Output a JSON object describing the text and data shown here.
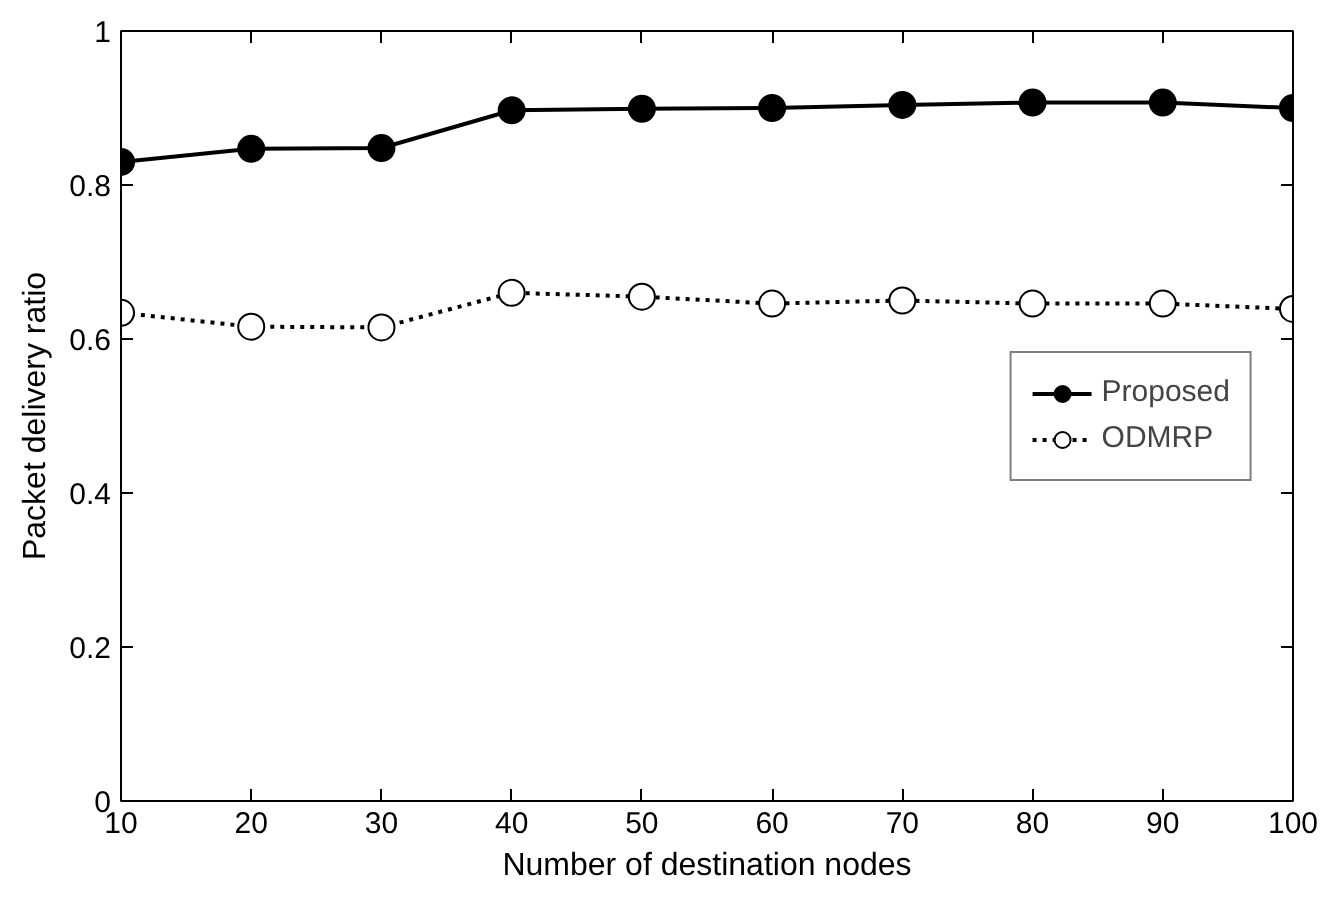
{
  "chart_data": {
    "type": "line",
    "xlabel": "Number of destination nodes",
    "ylabel": "Packet delivery ratio",
    "x": [
      10,
      20,
      30,
      40,
      50,
      60,
      70,
      80,
      90,
      100
    ],
    "series": [
      {
        "name": "Proposed",
        "color": "#000000",
        "marker": "circle",
        "line_style": "solid",
        "values": [
          0.83,
          0.847,
          0.848,
          0.897,
          0.899,
          0.9,
          0.904,
          0.907,
          0.907,
          0.9
        ]
      },
      {
        "name": "ODMRP",
        "color": "#000000",
        "marker": "circle",
        "line_style": "dotted",
        "values": [
          0.634,
          0.616,
          0.615,
          0.66,
          0.655,
          0.646,
          0.65,
          0.646,
          0.646,
          0.639
        ]
      }
    ],
    "xlim": [
      10,
      100
    ],
    "xticks": [
      10,
      20,
      30,
      40,
      50,
      60,
      70,
      80,
      90,
      100
    ],
    "ylim": [
      0,
      1
    ],
    "yticks": [
      0,
      0.2,
      0.4,
      0.6,
      0.8,
      1
    ],
    "grid": false,
    "legend": "right"
  }
}
